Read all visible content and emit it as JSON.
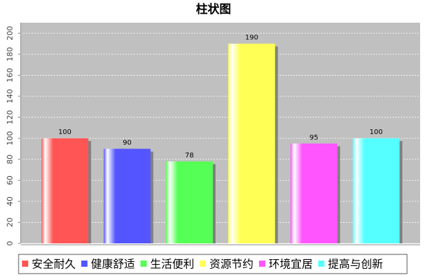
{
  "chart_data": {
    "type": "bar",
    "title": "柱状图",
    "categories": [
      "安全耐久",
      "健康舒适",
      "生活便利",
      "资源节约",
      "环境宜居",
      "提高与创新"
    ],
    "values": [
      100,
      90,
      78,
      190,
      95,
      100
    ],
    "colors": [
      "#ff5555",
      "#5555ff",
      "#55ff55",
      "#ffff55",
      "#ff55ff",
      "#55ffff"
    ],
    "ylim": [
      0,
      210
    ],
    "yticks": [
      0,
      20,
      40,
      60,
      80,
      100,
      120,
      140,
      160,
      180,
      200
    ],
    "grid": true
  }
}
